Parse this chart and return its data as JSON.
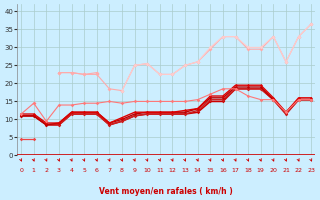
{
  "xlabel": "Vent moyen/en rafales ( km/h )",
  "background_color": "#cceeff",
  "grid_color": "#aacccc",
  "x_ticks": [
    0,
    1,
    2,
    3,
    4,
    5,
    6,
    7,
    8,
    9,
    10,
    11,
    12,
    13,
    14,
    15,
    16,
    17,
    18,
    19,
    20,
    21,
    22,
    23
  ],
  "ylim": [
    0,
    42
  ],
  "xlim": [
    -0.3,
    23.3
  ],
  "yticks": [
    0,
    5,
    10,
    15,
    20,
    25,
    30,
    35,
    40
  ],
  "series": [
    {
      "x": [
        0,
        1
      ],
      "y": [
        4.5,
        4.5
      ],
      "color": "#ee4444",
      "lw": 0.9,
      "marker": "D",
      "ms": 1.8
    },
    {
      "x": [
        0,
        1,
        2,
        3,
        4,
        5,
        6,
        7,
        8,
        9,
        10,
        11,
        12,
        13,
        14,
        15,
        16,
        17,
        18,
        19,
        20,
        21,
        22,
        23
      ],
      "y": [
        11,
        11,
        8.5,
        8.5,
        11.5,
        11.5,
        11.5,
        8.5,
        9.5,
        11,
        11.5,
        11.5,
        11.5,
        11.5,
        12,
        15,
        15,
        18.5,
        18.5,
        18.5,
        15.5,
        11.5,
        15.5,
        15.5
      ],
      "color": "#cc0000",
      "lw": 1.2,
      "marker": "D",
      "ms": 1.8
    },
    {
      "x": [
        0,
        1,
        2,
        3,
        4,
        5,
        6,
        7,
        8,
        9,
        10,
        11,
        12,
        13,
        14,
        15,
        16,
        17,
        18,
        19,
        20,
        21,
        22,
        23
      ],
      "y": [
        11,
        11,
        8.5,
        8.5,
        11.5,
        11.5,
        11.5,
        8.5,
        9.5,
        11,
        11.5,
        11.5,
        11.5,
        11.5,
        12.5,
        15.5,
        15.5,
        18.5,
        18.5,
        18.5,
        15.5,
        11.5,
        15.5,
        15.5
      ],
      "color": "#cc2222",
      "lw": 1.0,
      "marker": "D",
      "ms": 1.5
    },
    {
      "x": [
        0,
        1,
        2,
        3,
        4,
        5,
        6,
        7,
        8,
        9,
        10,
        11,
        12,
        13,
        14,
        15,
        16,
        17,
        18,
        19,
        20,
        21,
        22,
        23
      ],
      "y": [
        11,
        11,
        8.5,
        9,
        12,
        12,
        12,
        9,
        10,
        11.5,
        12,
        12,
        12,
        12,
        13,
        16,
        16,
        19,
        19,
        19,
        15.5,
        12,
        15.5,
        15.5
      ],
      "color": "#bb0000",
      "lw": 1.0,
      "marker": "D",
      "ms": 1.5
    },
    {
      "x": [
        0,
        1,
        2,
        3,
        4,
        5,
        6,
        7,
        8,
        9,
        10,
        11,
        12,
        13,
        14,
        15,
        16,
        17,
        18,
        19,
        20,
        21,
        22,
        23
      ],
      "y": [
        11.5,
        11.5,
        9,
        9,
        12,
        12,
        12,
        9,
        10.5,
        12,
        12,
        12,
        12,
        12.5,
        13,
        16.5,
        16.5,
        19.5,
        19.5,
        19.5,
        16,
        12,
        16,
        16
      ],
      "color": "#dd0000",
      "lw": 1.0,
      "marker": "D",
      "ms": 1.5
    },
    {
      "x": [
        1
      ],
      "y": [
        14.5
      ],
      "color": "#ffaaaa",
      "lw": 0.8,
      "marker": "D",
      "ms": 2.0
    },
    {
      "x": [
        3,
        4,
        5,
        6
      ],
      "y": [
        23,
        23,
        22.5,
        23
      ],
      "color": "#ffaaaa",
      "lw": 0.8,
      "marker": "D",
      "ms": 2.0
    },
    {
      "x": [
        3,
        4,
        5,
        6,
        7,
        8,
        9,
        10,
        11,
        12,
        13,
        14,
        15,
        16,
        17,
        18,
        19,
        20,
        21,
        22,
        23
      ],
      "y": [
        23,
        23,
        22.5,
        22.5,
        18.5,
        18,
        25,
        25.5,
        22.5,
        22.5,
        25,
        26,
        29.5,
        33,
        33,
        29.5,
        29.5,
        33,
        26,
        33,
        36.5
      ],
      "color": "#ffaaaa",
      "lw": 0.8,
      "marker": "D",
      "ms": 2.0
    },
    {
      "x": [
        8,
        9,
        10,
        11,
        12,
        13,
        14,
        15,
        16,
        17,
        18,
        19,
        20,
        21,
        22,
        23
      ],
      "y": [
        18,
        25,
        25.5,
        22.5,
        22.5,
        25,
        26,
        30,
        33,
        33,
        30,
        30,
        33,
        26,
        33,
        36.5
      ],
      "color": "#ffcccc",
      "lw": 0.8,
      "marker": "D",
      "ms": 1.8
    },
    {
      "x": [
        0,
        1,
        2,
        3,
        4,
        5,
        6,
        7,
        8,
        9,
        10,
        11,
        12,
        13,
        14,
        15,
        16,
        17,
        18,
        19,
        20,
        21,
        22,
        23
      ],
      "y": [
        11.5,
        14.5,
        9.5,
        14,
        14,
        14.5,
        14.5,
        15,
        14.5,
        15,
        15,
        15,
        15,
        15,
        15.5,
        17,
        18.5,
        18.5,
        16.5,
        15.5,
        15.5,
        12,
        15.5,
        15.5
      ],
      "color": "#ff7777",
      "lw": 0.8,
      "marker": "D",
      "ms": 1.8
    }
  ]
}
